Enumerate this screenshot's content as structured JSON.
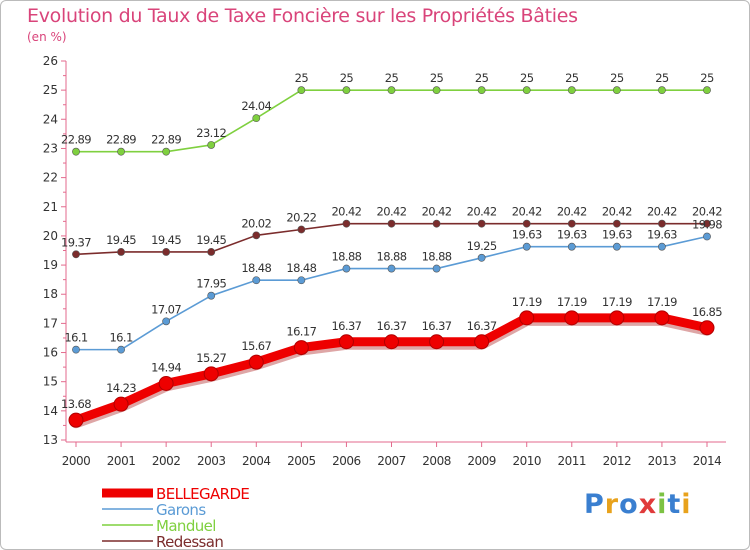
{
  "title": "Evolution du Taux de Taxe Foncière sur les Propriétés Bâties",
  "unit_label": "(en %)",
  "logo": [
    "P",
    "r",
    "o",
    "x",
    "i",
    "t",
    "i"
  ],
  "logo_colors": [
    "#3a7fd0",
    "#e8a21c",
    "#3a7fd0",
    "#e03a3a",
    "#7cc243",
    "#3a7fd0",
    "#e8a21c"
  ],
  "chart_data": {
    "type": "line",
    "title": "Evolution du Taux de Taxe Foncière sur les Propriétés Bâties",
    "ylabel": "(en %)",
    "x": [
      "2000",
      "2001",
      "2002",
      "2003",
      "2004",
      "2005",
      "2006",
      "2007",
      "2008",
      "2009",
      "2010",
      "2011",
      "2012",
      "2013",
      "2014"
    ],
    "yticks": [
      "13",
      "14",
      "15",
      "16",
      "17",
      "18",
      "19",
      "20",
      "21",
      "22",
      "23",
      "24",
      "25",
      "26"
    ],
    "ylim": [
      13,
      26
    ],
    "grid": false,
    "legend_position": "bottom-left",
    "series": [
      {
        "name": "BELLEGARDE",
        "color": "#ee0000",
        "values": [
          13.68,
          14.23,
          14.94,
          15.27,
          15.67,
          16.17,
          16.37,
          16.37,
          16.37,
          16.37,
          17.19,
          17.19,
          17.19,
          17.19,
          16.85
        ],
        "labels": [
          "13.68",
          "14.23",
          "14.94",
          "15.27",
          "15.67",
          "16.17",
          "16.37",
          "16.37",
          "16.37",
          "16.37",
          "17.19",
          "17.19",
          "17.19",
          "17.19",
          "16.85"
        ]
      },
      {
        "name": "Garons",
        "color": "#5b9bd5",
        "values": [
          16.1,
          16.1,
          17.07,
          17.95,
          18.48,
          18.48,
          18.88,
          18.88,
          18.88,
          19.25,
          19.63,
          19.63,
          19.63,
          19.63,
          19.98
        ],
        "labels": [
          "16.1",
          "16.1",
          "17.07",
          "17.95",
          "18.48",
          "18.48",
          "18.88",
          "18.88",
          "18.88",
          "19.25",
          "19.63",
          "19.63",
          "19.63",
          "19.63",
          "19.98"
        ]
      },
      {
        "name": "Manduel",
        "color": "#7fd03f",
        "values": [
          22.89,
          22.89,
          22.89,
          23.12,
          24.04,
          25,
          25,
          25,
          25,
          25,
          25,
          25,
          25,
          25,
          25
        ],
        "labels": [
          "22.89",
          "22.89",
          "22.89",
          "23.12",
          "24.04",
          "25",
          "25",
          "25",
          "25",
          "25",
          "25",
          "25",
          "25",
          "25",
          "25"
        ]
      },
      {
        "name": "Redessan",
        "color": "#7b2c2c",
        "values": [
          19.37,
          19.45,
          19.45,
          19.45,
          20.02,
          20.22,
          20.42,
          20.42,
          20.42,
          20.42,
          20.42,
          20.42,
          20.42,
          20.42,
          20.42
        ],
        "labels": [
          "19.37",
          "19.45",
          "19.45",
          "19.45",
          "20.02",
          "20.22",
          "20.42",
          "20.42",
          "20.42",
          "20.42",
          "20.42",
          "20.42",
          "20.42",
          "20.42",
          "20.42"
        ]
      }
    ]
  }
}
